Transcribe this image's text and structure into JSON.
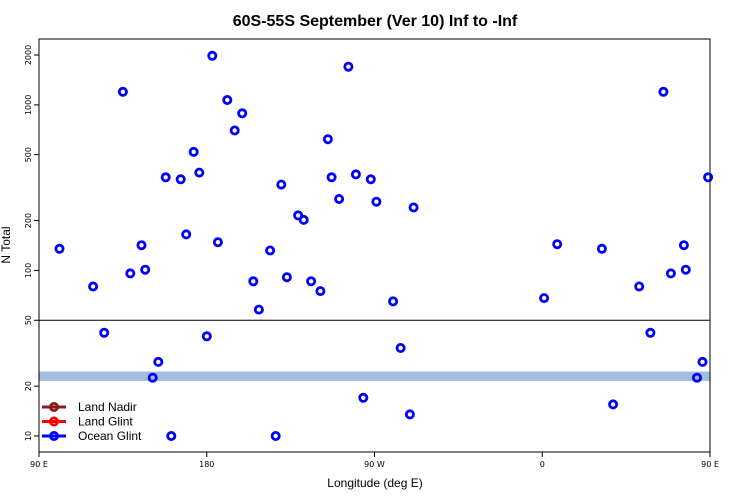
{
  "chart_data": {
    "type": "scatter",
    "title": "60S-55S September (Ver 10)   Inf to -Inf",
    "xlabel": "Longitude (deg E)",
    "ylabel": "N Total",
    "y_scale": "log",
    "xlim": [
      90,
      450
    ],
    "ylim": [
      8,
      2500
    ],
    "x_ticks": [
      {
        "value": 90,
        "label": "90 E"
      },
      {
        "value": 180,
        "label": "180"
      },
      {
        "value": 270,
        "label": "90 W"
      },
      {
        "value": 360,
        "label": "0"
      },
      {
        "value": 450,
        "label": "90 E"
      }
    ],
    "y_ticks": [
      {
        "value": 10,
        "label": "10"
      },
      {
        "value": 20,
        "label": "20"
      },
      {
        "value": 50,
        "label": "50"
      },
      {
        "value": 100,
        "label": "100"
      },
      {
        "value": 200,
        "label": "200"
      },
      {
        "value": 500,
        "label": "500"
      },
      {
        "value": 1000,
        "label": "1000"
      },
      {
        "value": 2000,
        "label": "2000"
      }
    ],
    "reference_line": {
      "y": 50,
      "color": "#000000"
    },
    "band": {
      "y_low": 21.5,
      "y_high": 24.5,
      "color": "#a3bce0"
    },
    "legend_position": "bottom-left",
    "series": [
      {
        "name": "Land Nadir",
        "color": "#8b1a1a",
        "points": []
      },
      {
        "name": "Land Glint",
        "color": "#ff0000",
        "points": []
      },
      {
        "name": "Ocean Glint",
        "color": "#0000ff",
        "points": [
          [
            101,
            135
          ],
          [
            119,
            80
          ],
          [
            125,
            42
          ],
          [
            135,
            1200
          ],
          [
            139,
            96
          ],
          [
            145,
            142
          ],
          [
            147,
            101
          ],
          [
            151,
            22.5
          ],
          [
            154,
            28
          ],
          [
            158,
            365
          ],
          [
            161,
            10
          ],
          [
            166,
            355
          ],
          [
            169,
            165
          ],
          [
            173,
            520
          ],
          [
            176,
            390
          ],
          [
            180,
            40
          ],
          [
            183,
            1980
          ],
          [
            186,
            148
          ],
          [
            191,
            1070
          ],
          [
            195,
            700
          ],
          [
            199,
            890
          ],
          [
            205,
            86
          ],
          [
            208,
            58
          ],
          [
            214,
            132
          ],
          [
            217,
            10
          ],
          [
            220,
            330
          ],
          [
            223,
            91
          ],
          [
            229,
            215
          ],
          [
            232,
            202
          ],
          [
            236,
            86
          ],
          [
            241,
            75
          ],
          [
            245,
            620
          ],
          [
            247,
            365
          ],
          [
            251,
            270
          ],
          [
            256,
            1700
          ],
          [
            260,
            380
          ],
          [
            264,
            17
          ],
          [
            268,
            355
          ],
          [
            271,
            260
          ],
          [
            280,
            65
          ],
          [
            284,
            34
          ],
          [
            289,
            13.5
          ],
          [
            291,
            240
          ],
          [
            361,
            68
          ],
          [
            368,
            144
          ],
          [
            392,
            135
          ],
          [
            398,
            15.5
          ],
          [
            412,
            80
          ],
          [
            418,
            42
          ],
          [
            425,
            1200
          ],
          [
            429,
            96
          ],
          [
            436,
            142
          ],
          [
            437,
            101
          ],
          [
            443,
            22.5
          ],
          [
            446,
            28
          ],
          [
            449,
            365
          ]
        ]
      }
    ]
  }
}
